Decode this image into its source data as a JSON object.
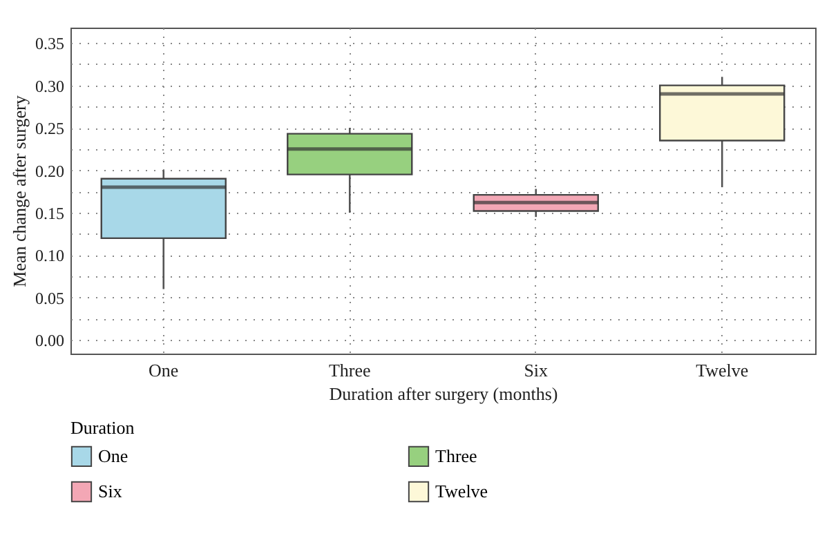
{
  "chart_data": {
    "type": "box",
    "xlabel": "Duration after surgery (months)",
    "ylabel": "Mean change after surgery",
    "legend_title": "Duration",
    "categories": [
      "One",
      "Three",
      "Six",
      "Twelve"
    ],
    "series": [
      {
        "name": "One",
        "color": "#a8d8e8",
        "boxes": [
          {
            "low": 0.06,
            "q1": 0.12,
            "median": 0.18,
            "q3": 0.19,
            "high": 0.2
          },
          null,
          null,
          null
        ]
      },
      {
        "name": "Three",
        "color": "#97d07f",
        "boxes": [
          null,
          {
            "low": 0.15,
            "q1": 0.195,
            "median": 0.225,
            "q3": 0.243,
            "high": 0.25
          },
          null,
          null
        ]
      },
      {
        "name": "Six",
        "color": "#f3a7b5",
        "boxes": [
          null,
          null,
          {
            "low": 0.145,
            "q1": 0.152,
            "median": 0.162,
            "q3": 0.171,
            "high": 0.178
          },
          null
        ]
      },
      {
        "name": "Twelve",
        "color": "#fdf8d8",
        "boxes": [
          null,
          null,
          null,
          {
            "low": 0.18,
            "q1": 0.235,
            "median": 0.29,
            "q3": 0.3,
            "high": 0.31
          }
        ]
      }
    ],
    "ylim": [
      -0.016,
      0.368
    ],
    "yticks": [
      {
        "value": 0,
        "label": "0.00"
      },
      {
        "value": 0.025,
        "label": null
      },
      {
        "value": 0.05,
        "label": "0.05"
      },
      {
        "value": 0.075,
        "label": null
      },
      {
        "value": 0.1,
        "label": "0.10"
      },
      {
        "value": 0.125,
        "label": null
      },
      {
        "value": 0.15,
        "label": "0.15"
      },
      {
        "value": 0.175,
        "label": null
      },
      {
        "value": 0.2,
        "label": "0.20"
      },
      {
        "value": 0.225,
        "label": null
      },
      {
        "value": 0.25,
        "label": "0.25"
      },
      {
        "value": 0.275,
        "label": null
      },
      {
        "value": 0.3,
        "label": "0.30"
      },
      {
        "value": 0.325,
        "label": null
      },
      {
        "value": 0.35,
        "label": "0.35"
      }
    ],
    "grid": true,
    "legend": "bottom"
  }
}
